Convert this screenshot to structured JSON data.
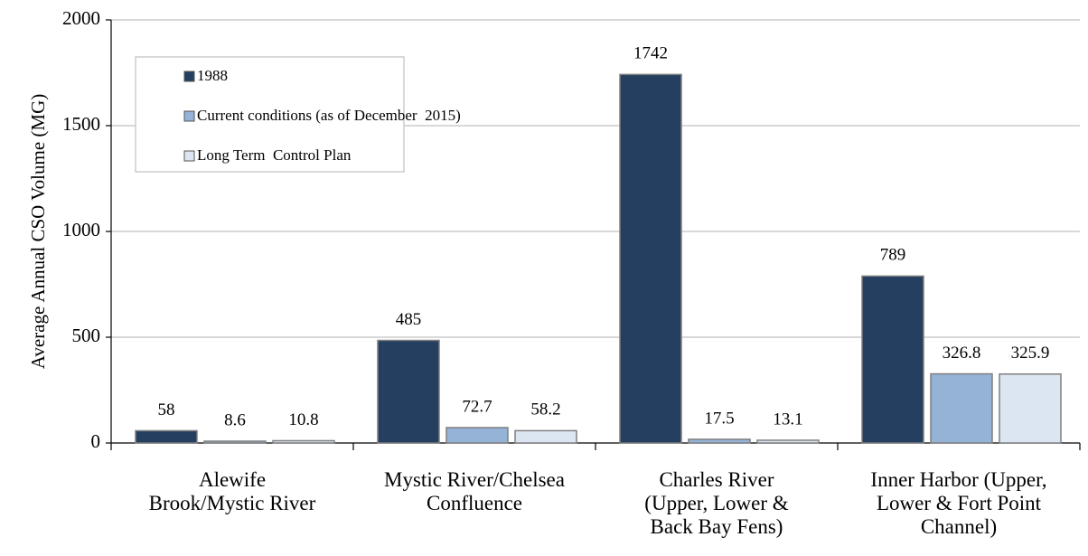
{
  "chart_data": {
    "type": "bar",
    "y_label": "Average Annual CSO Volume (MG)",
    "categories": [
      "Alewife\nBrook/Mystic River",
      "Mystic River/Chelsea\nConfluence",
      "Charles River\n(Upper, Lower &\nBack Bay Fens)",
      "Inner Harbor (Upper,\nLower & Fort Point\nChannel)"
    ],
    "series": [
      {
        "name": "1988",
        "color": "#243f60",
        "values": [
          58,
          485,
          1742,
          789
        ]
      },
      {
        "name": "Current conditions (as of December  2015)",
        "color": "#95b3d7",
        "values": [
          8.6,
          72.7,
          17.5,
          326.8
        ]
      },
      {
        "name": "Long Term  Control Plan",
        "color": "#dce6f2",
        "values": [
          10.8,
          58.2,
          13.1,
          325.9
        ]
      }
    ],
    "ylim": [
      0,
      2000
    ],
    "yticks": [
      0,
      500,
      1000,
      1500,
      2000
    ],
    "grid": true,
    "legend": "upper left"
  }
}
